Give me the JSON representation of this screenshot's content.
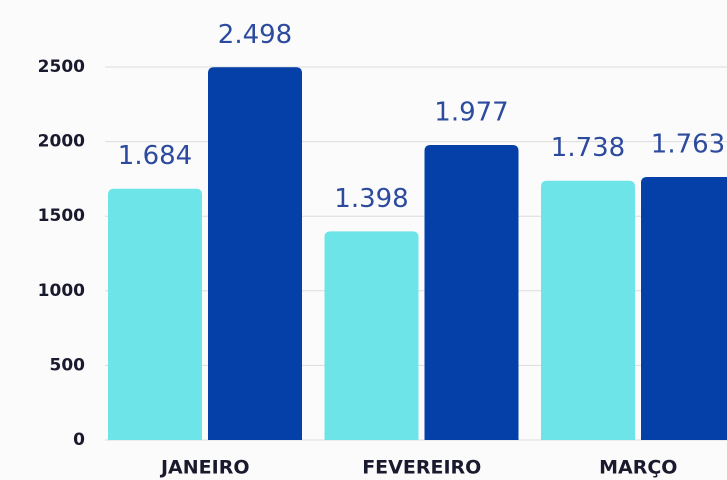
{
  "chart_data": {
    "type": "bar",
    "categories": [
      "JANEIRO",
      "FEVEREIRO",
      "MARÇO"
    ],
    "series": [
      {
        "color": "#6ce4e8",
        "values": [
          1684,
          1398,
          1738
        ],
        "value_labels": [
          "1.684",
          "1.398",
          "1.738"
        ]
      },
      {
        "color": "#0540a8",
        "values": [
          2498,
          1977,
          1763
        ],
        "value_labels": [
          "2.498",
          "1.977",
          "1.763"
        ]
      }
    ],
    "ylim": [
      0,
      2500
    ],
    "yticks": [
      0,
      500,
      1000,
      1500,
      2000,
      2500
    ],
    "grid": true
  }
}
